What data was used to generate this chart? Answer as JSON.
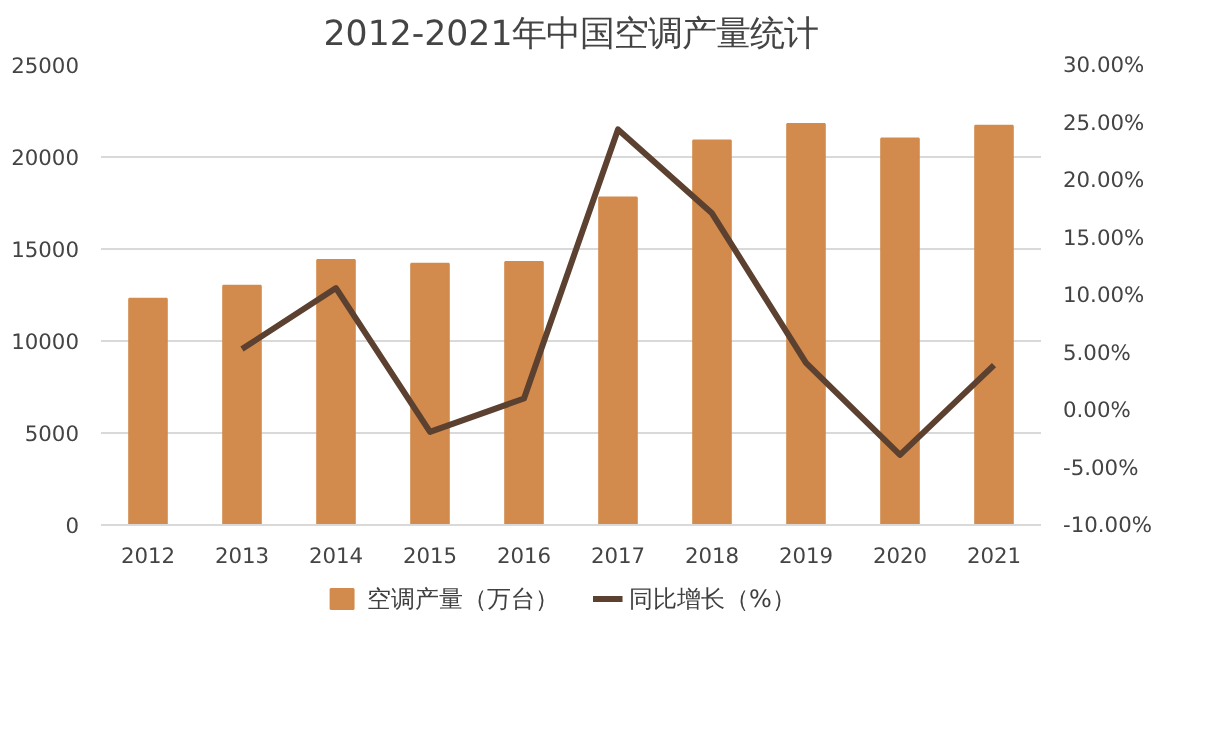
{
  "chart_data": {
    "type": "bar",
    "title": "2012-2021年中国空调产量统计",
    "categories": [
      "2012",
      "2013",
      "2014",
      "2015",
      "2016",
      "2017",
      "2018",
      "2019",
      "2020",
      "2021"
    ],
    "series": [
      {
        "name": "空调产量（万台）",
        "type": "bar",
        "color": "#d28b4c",
        "values": [
          12300,
          13000,
          14400,
          14200,
          14300,
          17800,
          20900,
          21800,
          21000,
          21700
        ]
      },
      {
        "name": "同比增长（%）",
        "type": "line",
        "axis": "y2",
        "color": "#5c4030",
        "values": [
          null,
          5.3,
          10.6,
          -1.9,
          1.0,
          24.4,
          17.1,
          4.1,
          -3.9,
          3.9
        ]
      }
    ],
    "ylim": [
      0,
      25000
    ],
    "yticks": [
      0,
      5000,
      10000,
      15000,
      20000,
      25000
    ],
    "y2lim": [
      -10,
      30
    ],
    "y2ticks": [
      {
        "value": -10,
        "label": "-10.00%"
      },
      {
        "value": -5,
        "label": "-5.00%"
      },
      {
        "value": 0,
        "label": "0.00%"
      },
      {
        "value": 5,
        "label": "5.00%"
      },
      {
        "value": 10,
        "label": "10.00%"
      },
      {
        "value": 15,
        "label": "15.00%"
      },
      {
        "value": 20,
        "label": "20.00%"
      },
      {
        "value": 25,
        "label": "25.00%"
      },
      {
        "value": 30,
        "label": "30.00%"
      }
    ],
    "grid": "y",
    "legend": "bottom",
    "marker": "none",
    "line_style": "solid"
  }
}
